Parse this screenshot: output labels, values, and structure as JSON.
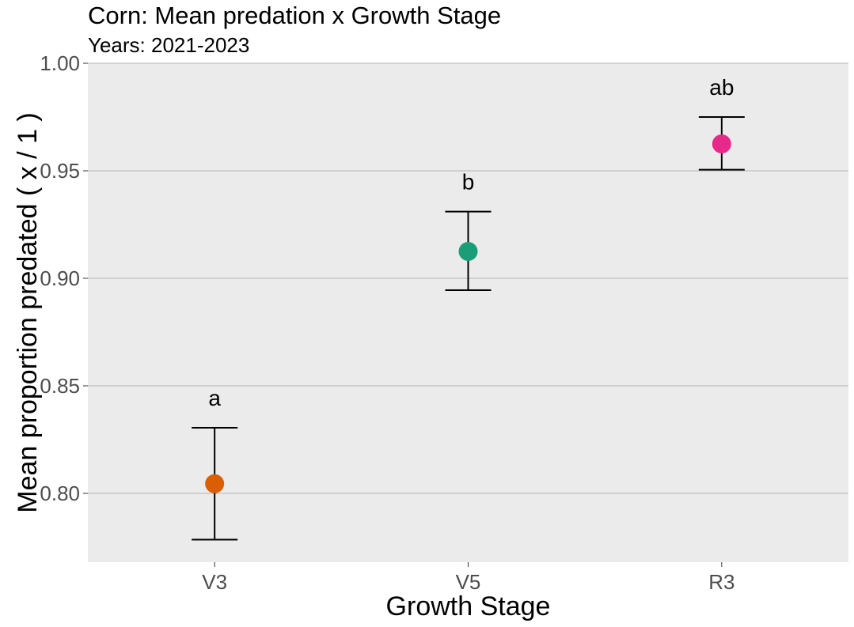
{
  "chart_data": {
    "type": "scatter",
    "title": "Corn: Mean predation x Growth Stage",
    "subtitle": "Years: 2021-2023",
    "xlabel": "Growth Stage",
    "ylabel": "Mean proportion predated ( x / 1 )",
    "ylim": [
      0.768,
      1.0
    ],
    "yticks": [
      "0.80",
      "0.85",
      "0.90",
      "0.95",
      "1.00"
    ],
    "ytick_values": [
      0.8,
      0.85,
      0.9,
      0.95,
      1.0
    ],
    "grid": "horizontal",
    "categories": [
      "V3",
      "V5",
      "R3"
    ],
    "points": [
      {
        "category": "V3",
        "mean": 0.8045,
        "lower": 0.7785,
        "upper": 0.8305,
        "letter": "a",
        "color": "#d95f02"
      },
      {
        "category": "V5",
        "mean": 0.9125,
        "lower": 0.8945,
        "upper": 0.931,
        "letter": "b",
        "color": "#1b9e77"
      },
      {
        "category": "R3",
        "mean": 0.9625,
        "lower": 0.9505,
        "upper": 0.975,
        "letter": "ab",
        "color": "#e7298a"
      }
    ],
    "panel_background": "#ebebeb",
    "grid_color": "#b3b3b3"
  }
}
